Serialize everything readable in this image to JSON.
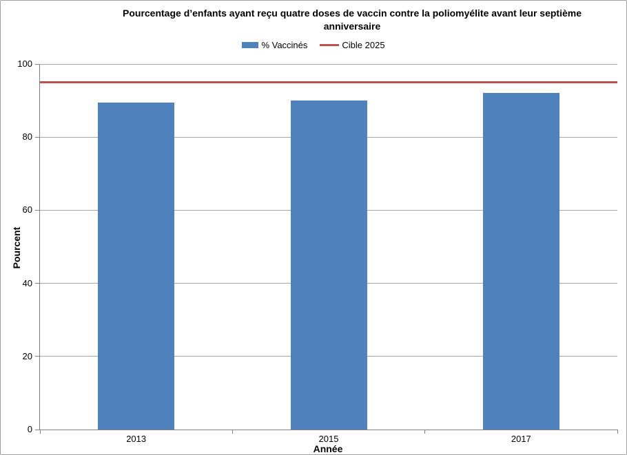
{
  "chart_data": {
    "type": "bar",
    "title": "Pourcentage d’enfants ayant reçu quatre doses de vaccin contre la poliomyélite avant leur septième anniversaire",
    "xlabel": "Année",
    "ylabel": "Pourcent",
    "categories": [
      "2013",
      "2015",
      "2017"
    ],
    "series": [
      {
        "name": "% Vaccinés",
        "type": "bar",
        "values": [
          89.5,
          90,
          92
        ],
        "color": "#4F81BD"
      },
      {
        "name": "Cible 2025",
        "type": "line",
        "value": 95,
        "color": "#C0504D"
      }
    ],
    "ylim": [
      0,
      100
    ],
    "yticks": [
      0,
      20,
      40,
      60,
      80,
      100
    ],
    "grid": "horizontal",
    "legend_position": "top",
    "colors": {
      "gridline": "#a6a6a6",
      "axis": "#808080",
      "text": "#000000"
    }
  }
}
